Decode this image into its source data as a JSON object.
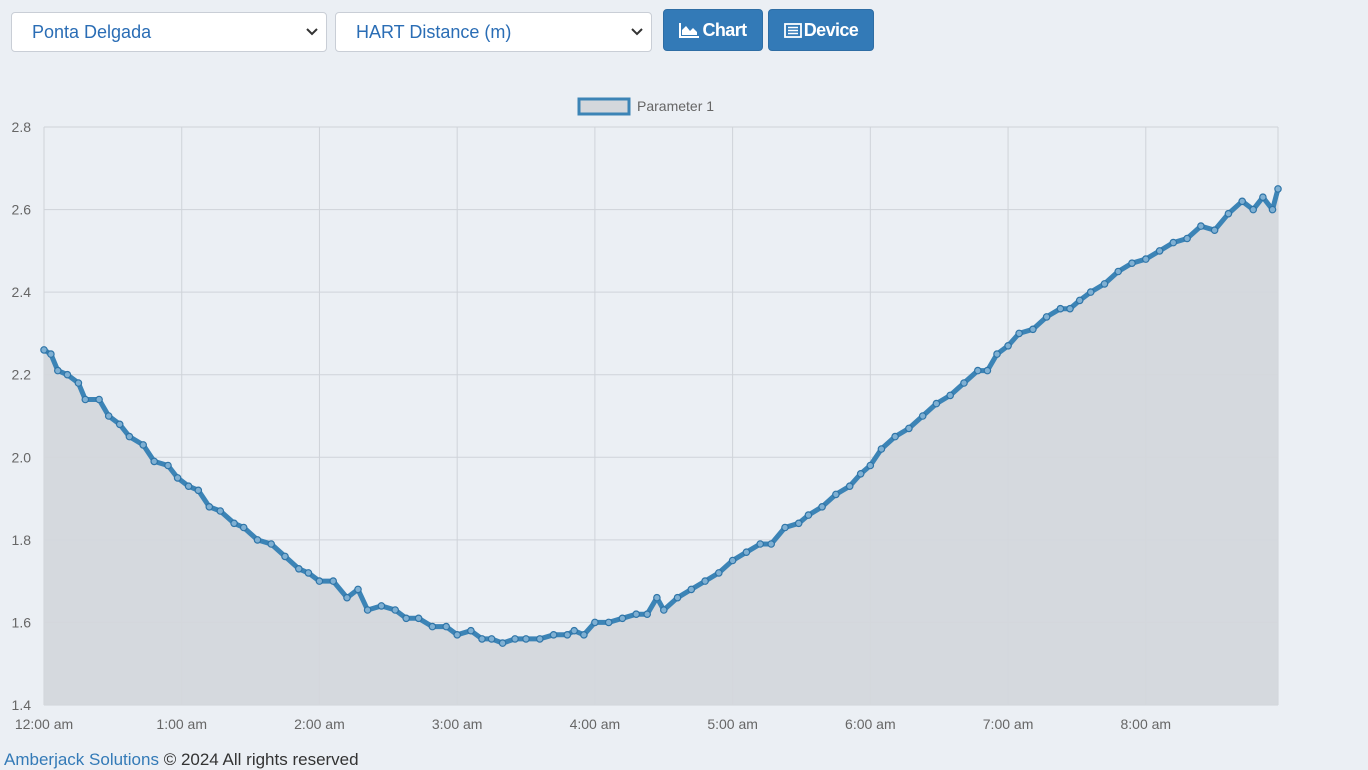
{
  "controls": {
    "location_select": {
      "value": "Ponta Delgada"
    },
    "parameter_select": {
      "value": "HART Distance (m)"
    },
    "chart_button": {
      "label": "Chart",
      "icon": "area-chart-icon"
    },
    "device_button": {
      "label": "Device",
      "icon": "list-icon"
    }
  },
  "colors": {
    "background": "#ebeff4",
    "accent": "#337ab7",
    "series_line": "#3c84b6",
    "series_fill": "#d4d7dc",
    "grid": "#cfd3d9"
  },
  "footer": {
    "company": "Amberjack Solutions",
    "rights": " © 2024 All rights reserved"
  },
  "chart_data": {
    "type": "line",
    "legend": {
      "position": "top-center",
      "entries": [
        "Parameter 1"
      ]
    },
    "ylim": [
      1.4,
      2.8
    ],
    "y_ticks": [
      "2.8",
      "2.6",
      "2.4",
      "2.2",
      "2.0",
      "1.8",
      "1.6",
      "1.4"
    ],
    "y_tick_values": [
      2.8,
      2.6,
      2.4,
      2.2,
      2.0,
      1.8,
      1.6,
      1.4
    ],
    "x_range_hours": [
      0,
      8.96
    ],
    "x_ticks": [
      "12:00 am",
      "1:00 am",
      "2:00 am",
      "3:00 am",
      "4:00 am",
      "5:00 am",
      "6:00 am",
      "7:00 am",
      "8:00 am"
    ],
    "x_tick_hours": [
      0,
      1,
      2,
      3,
      4,
      5,
      6,
      7,
      8
    ],
    "grid": true,
    "fill": true,
    "series": [
      {
        "name": "Parameter 1",
        "points": [
          [
            0.0,
            2.26
          ],
          [
            0.05,
            2.25
          ],
          [
            0.1,
            2.21
          ],
          [
            0.17,
            2.2
          ],
          [
            0.25,
            2.18
          ],
          [
            0.3,
            2.14
          ],
          [
            0.4,
            2.14
          ],
          [
            0.47,
            2.1
          ],
          [
            0.55,
            2.08
          ],
          [
            0.62,
            2.05
          ],
          [
            0.72,
            2.03
          ],
          [
            0.8,
            1.99
          ],
          [
            0.9,
            1.98
          ],
          [
            0.97,
            1.95
          ],
          [
            1.05,
            1.93
          ],
          [
            1.12,
            1.92
          ],
          [
            1.2,
            1.88
          ],
          [
            1.28,
            1.87
          ],
          [
            1.38,
            1.84
          ],
          [
            1.45,
            1.83
          ],
          [
            1.55,
            1.8
          ],
          [
            1.65,
            1.79
          ],
          [
            1.75,
            1.76
          ],
          [
            1.85,
            1.73
          ],
          [
            1.92,
            1.72
          ],
          [
            2.0,
            1.7
          ],
          [
            2.1,
            1.7
          ],
          [
            2.2,
            1.66
          ],
          [
            2.28,
            1.68
          ],
          [
            2.35,
            1.63
          ],
          [
            2.45,
            1.64
          ],
          [
            2.55,
            1.63
          ],
          [
            2.63,
            1.61
          ],
          [
            2.72,
            1.61
          ],
          [
            2.82,
            1.59
          ],
          [
            2.92,
            1.59
          ],
          [
            3.0,
            1.57
          ],
          [
            3.1,
            1.58
          ],
          [
            3.18,
            1.56
          ],
          [
            3.25,
            1.56
          ],
          [
            3.33,
            1.55
          ],
          [
            3.42,
            1.56
          ],
          [
            3.5,
            1.56
          ],
          [
            3.6,
            1.56
          ],
          [
            3.7,
            1.57
          ],
          [
            3.8,
            1.57
          ],
          [
            3.85,
            1.58
          ],
          [
            3.92,
            1.57
          ],
          [
            4.0,
            1.6
          ],
          [
            4.1,
            1.6
          ],
          [
            4.2,
            1.61
          ],
          [
            4.3,
            1.62
          ],
          [
            4.38,
            1.62
          ],
          [
            4.45,
            1.66
          ],
          [
            4.5,
            1.63
          ],
          [
            4.6,
            1.66
          ],
          [
            4.7,
            1.68
          ],
          [
            4.8,
            1.7
          ],
          [
            4.9,
            1.72
          ],
          [
            5.0,
            1.75
          ],
          [
            5.1,
            1.77
          ],
          [
            5.2,
            1.79
          ],
          [
            5.28,
            1.79
          ],
          [
            5.38,
            1.83
          ],
          [
            5.48,
            1.84
          ],
          [
            5.55,
            1.86
          ],
          [
            5.65,
            1.88
          ],
          [
            5.75,
            1.91
          ],
          [
            5.85,
            1.93
          ],
          [
            5.93,
            1.96
          ],
          [
            6.0,
            1.98
          ],
          [
            6.08,
            2.02
          ],
          [
            6.18,
            2.05
          ],
          [
            6.28,
            2.07
          ],
          [
            6.38,
            2.1
          ],
          [
            6.48,
            2.13
          ],
          [
            6.58,
            2.15
          ],
          [
            6.68,
            2.18
          ],
          [
            6.78,
            2.21
          ],
          [
            6.85,
            2.21
          ],
          [
            6.92,
            2.25
          ],
          [
            7.0,
            2.27
          ],
          [
            7.08,
            2.3
          ],
          [
            7.18,
            2.31
          ],
          [
            7.28,
            2.34
          ],
          [
            7.38,
            2.36
          ],
          [
            7.45,
            2.36
          ],
          [
            7.52,
            2.38
          ],
          [
            7.6,
            2.4
          ],
          [
            7.7,
            2.42
          ],
          [
            7.8,
            2.45
          ],
          [
            7.9,
            2.47
          ],
          [
            8.0,
            2.48
          ],
          [
            8.1,
            2.5
          ],
          [
            8.2,
            2.52
          ],
          [
            8.3,
            2.53
          ],
          [
            8.4,
            2.56
          ],
          [
            8.5,
            2.55
          ],
          [
            8.6,
            2.59
          ],
          [
            8.7,
            2.62
          ],
          [
            8.78,
            2.6
          ],
          [
            8.85,
            2.63
          ],
          [
            8.92,
            2.6
          ],
          [
            8.96,
            2.65
          ]
        ]
      }
    ]
  }
}
